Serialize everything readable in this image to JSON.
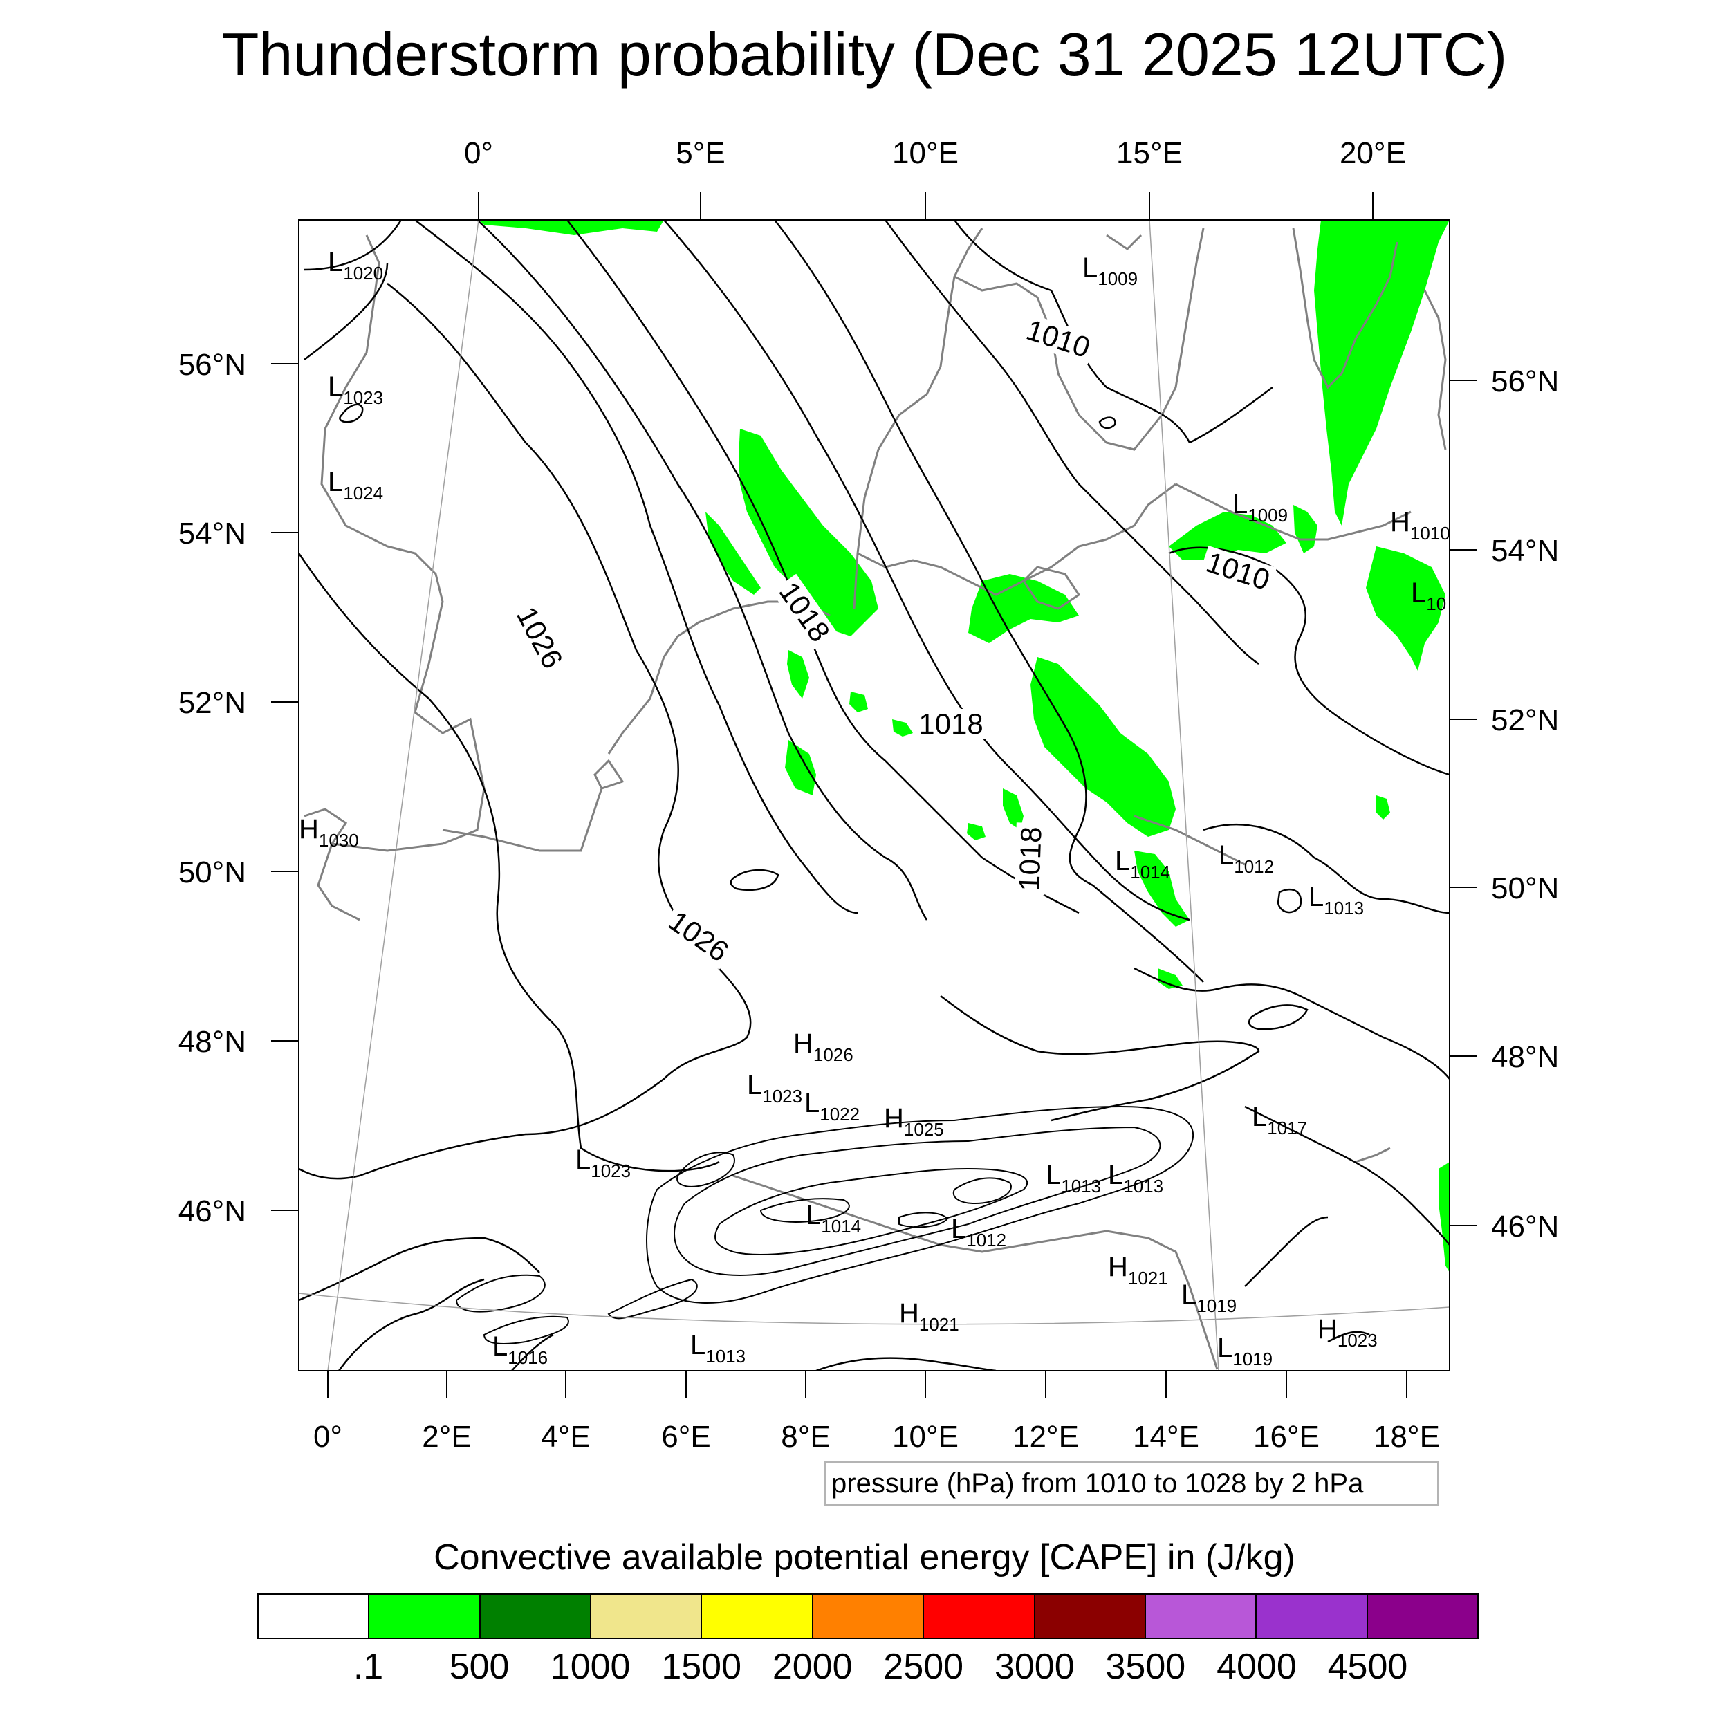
{
  "title": "Thunderstorm probability (Dec 31 2025 12UTC)",
  "map": {
    "top_lon_labels": [
      "0°",
      "5°E",
      "10°E",
      "15°E",
      "20°E"
    ],
    "bottom_lon_labels": [
      "0°",
      "2°E",
      "4°E",
      "6°E",
      "8°E",
      "10°E",
      "12°E",
      "14°E",
      "16°E",
      "18°E"
    ],
    "left_lat_labels": [
      "56°N",
      "54°N",
      "52°N",
      "50°N",
      "48°N",
      "46°N"
    ],
    "right_lat_labels": [
      "56°N",
      "54°N",
      "52°N",
      "50°N",
      "48°N",
      "46°N"
    ],
    "isobar_labels": [
      "1026",
      "1026",
      "1018",
      "1018",
      "1018",
      "1010",
      "1010"
    ],
    "pressure_centers": [
      {
        "kind": "L",
        "value": "1020"
      },
      {
        "kind": "L",
        "value": "1023"
      },
      {
        "kind": "L",
        "value": "1024"
      },
      {
        "kind": "H",
        "value": "1030"
      },
      {
        "kind": "L",
        "value": "1009"
      },
      {
        "kind": "L",
        "value": "1009"
      },
      {
        "kind": "H",
        "value": "1010"
      },
      {
        "kind": "L",
        "value": "10"
      },
      {
        "kind": "L",
        "value": "1014"
      },
      {
        "kind": "L",
        "value": "1012"
      },
      {
        "kind": "L",
        "value": "1013"
      },
      {
        "kind": "H",
        "value": "1026"
      },
      {
        "kind": "L",
        "value": "1023"
      },
      {
        "kind": "L",
        "value": "1022"
      },
      {
        "kind": "H",
        "value": "1025"
      },
      {
        "kind": "L",
        "value": "1017"
      },
      {
        "kind": "L",
        "value": "1023"
      },
      {
        "kind": "L",
        "value": "1013"
      },
      {
        "kind": "L",
        "value": "1013"
      },
      {
        "kind": "L",
        "value": "1014"
      },
      {
        "kind": "L",
        "value": "1012"
      },
      {
        "kind": "H",
        "value": "1021"
      },
      {
        "kind": "L",
        "value": "1019"
      },
      {
        "kind": "H",
        "value": "1021"
      },
      {
        "kind": "L",
        "value": "1016"
      },
      {
        "kind": "L",
        "value": "1013"
      },
      {
        "kind": "L",
        "value": "1019"
      },
      {
        "kind": "H",
        "value": "1023"
      }
    ],
    "cape_fill_color": "#00ff00",
    "coastline_color": "#808080"
  },
  "contour_info": "pressure (hPa) from 1010 to 1028 by 2 hPa",
  "colorbar": {
    "title": "Convective available potential energy [CAPE] in (J/kg)",
    "colors": [
      "#ffffff",
      "#00ff00",
      "#008000",
      "#f0e68c",
      "#ffff00",
      "#ff8000",
      "#ff0000",
      "#8b0000",
      "#b857d8",
      "#9a32cd",
      "#8b008b"
    ],
    "tick_labels": [
      ".1",
      "500",
      "1000",
      "1500",
      "2000",
      "2500",
      "3000",
      "3500",
      "4000",
      "4500"
    ]
  }
}
